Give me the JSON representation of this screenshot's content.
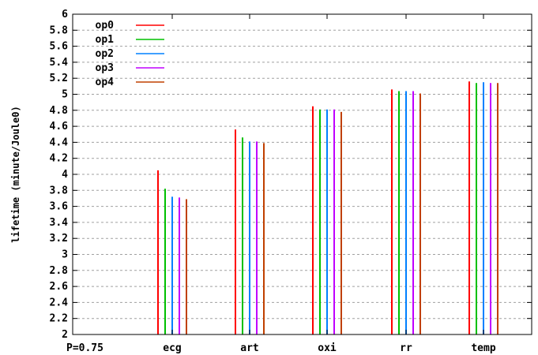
{
  "chart_data": {
    "type": "bar",
    "title": "",
    "xlabel": "",
    "ylabel": "lifetime (minute/Joule0)",
    "corner_label": "P=0.75",
    "categories": [
      "ecg",
      "art",
      "oxi",
      "rr",
      "temp"
    ],
    "ylim": [
      2,
      6
    ],
    "y_ticks": [
      "2",
      "2.2",
      "2.4",
      "2.6",
      "2.8",
      "3",
      "3.2",
      "3.4",
      "3.6",
      "3.8",
      "4",
      "4.2",
      "4.4",
      "4.6",
      "4.8",
      "5",
      "5.2",
      "5.4",
      "5.6",
      "5.8",
      "6"
    ],
    "grid": true,
    "legend_position": "top-left",
    "series": [
      {
        "name": "op0",
        "color": "#ff0000",
        "values": [
          4.05,
          4.56,
          4.85,
          5.06,
          5.16
        ]
      },
      {
        "name": "op1",
        "color": "#00c000",
        "values": [
          3.82,
          4.46,
          4.81,
          5.04,
          5.14
        ]
      },
      {
        "name": "op2",
        "color": "#0080ff",
        "values": [
          3.72,
          4.41,
          4.81,
          5.04,
          5.15
        ]
      },
      {
        "name": "op3",
        "color": "#c000ff",
        "values": [
          3.71,
          4.41,
          4.81,
          5.04,
          5.14
        ]
      },
      {
        "name": "op4",
        "color": "#c04000",
        "values": [
          3.69,
          4.39,
          4.78,
          5.01,
          5.14
        ]
      }
    ]
  }
}
